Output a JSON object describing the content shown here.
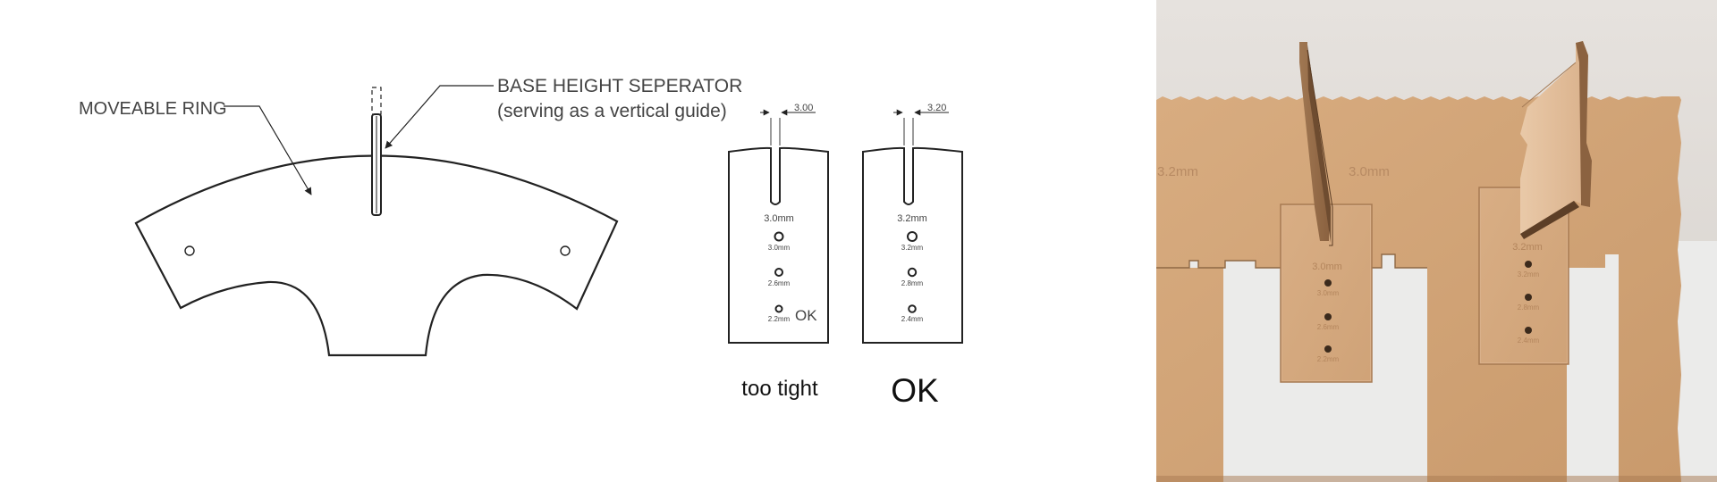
{
  "ring": {
    "label": "MOVEABLE RING",
    "separator_title": "BASE HEIGHT SEPERATOR",
    "separator_subtitle": "(serving as a vertical guide)"
  },
  "gauge_left": {
    "dimension": "3.00",
    "slot_label": "3.0mm",
    "holes": [
      "3.0mm",
      "2.6mm",
      "2.2mm"
    ],
    "hole_note": "OK",
    "caption": "too tight"
  },
  "gauge_right": {
    "dimension": "3.20",
    "slot_label": "3.2mm",
    "holes": [
      "3.2mm",
      "2.8mm",
      "2.4mm"
    ],
    "caption": "OK"
  },
  "photo": {
    "board_marks": [
      "3.2mm",
      "3.0mm"
    ],
    "left_piece_labels": [
      "3.0mm",
      "3.0mm",
      "2.6mm",
      "2.2mm"
    ],
    "right_piece_labels": [
      "3.2mm",
      "3.2mm",
      "2.8mm",
      "2.4mm"
    ]
  }
}
